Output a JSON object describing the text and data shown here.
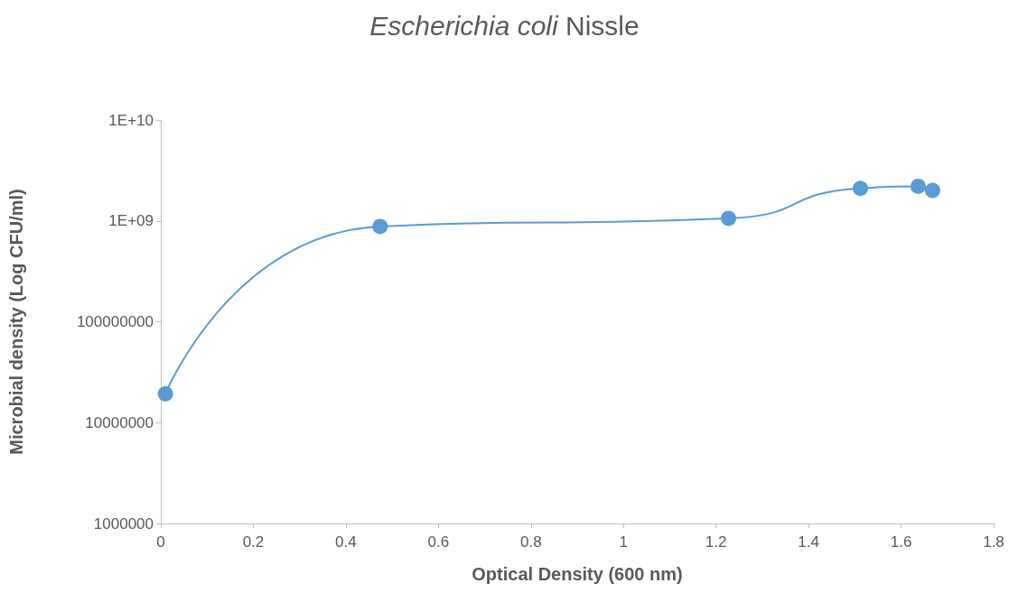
{
  "chart_data": {
    "type": "line",
    "title": "Escherichia coli Nissle",
    "xlabel": "Optical Density (600 nm)",
    "ylabel": "Microbial density (Log CFU/ml)",
    "x": [
      0.01,
      0.474,
      1.227,
      1.512,
      1.637,
      1.668
    ],
    "series": [
      {
        "color": "#5b9bd5",
        "values": [
          19300000,
          880000000,
          1060000000,
          2100000000,
          2200000000,
          2000000000
        ]
      }
    ],
    "xlim": [
      0,
      1.8
    ],
    "xticks": [
      0,
      0.2,
      0.4,
      0.6,
      0.8,
      1,
      1.2,
      1.4,
      1.6,
      1.8
    ],
    "ylim": [
      1000000,
      10000000000
    ],
    "yticks": [
      1000000,
      10000000,
      100000000,
      {
        "value": 1000000000,
        "label": "1E+09"
      },
      {
        "value": 10000000000,
        "label": "1E+10"
      }
    ],
    "log": "y",
    "grid": false,
    "marker": "circle",
    "line_style": "solid"
  }
}
